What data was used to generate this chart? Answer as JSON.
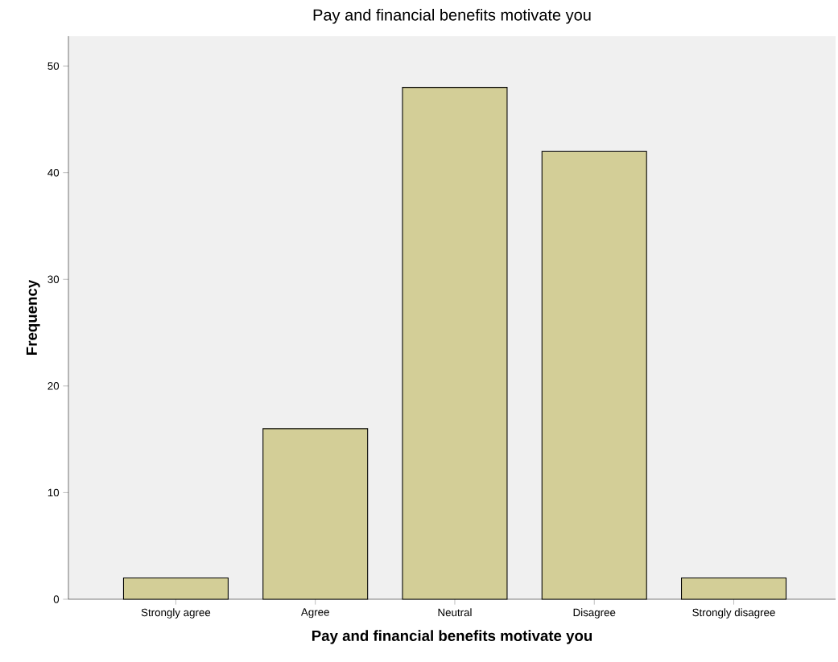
{
  "chart_data": {
    "type": "bar",
    "title": "Pay and financial benefits motivate you",
    "xlabel": "Pay and financial benefits motivate you",
    "ylabel": "Frequency",
    "categories": [
      "Strongly agree",
      "Agree",
      "Neutral",
      "Disagree",
      "Strongly disagree"
    ],
    "values": [
      2,
      16,
      48,
      42,
      2
    ],
    "color": "#d3ce97",
    "ylim": [
      0,
      52.8
    ],
    "yticks": [
      0,
      10,
      20,
      30,
      40,
      50
    ]
  }
}
